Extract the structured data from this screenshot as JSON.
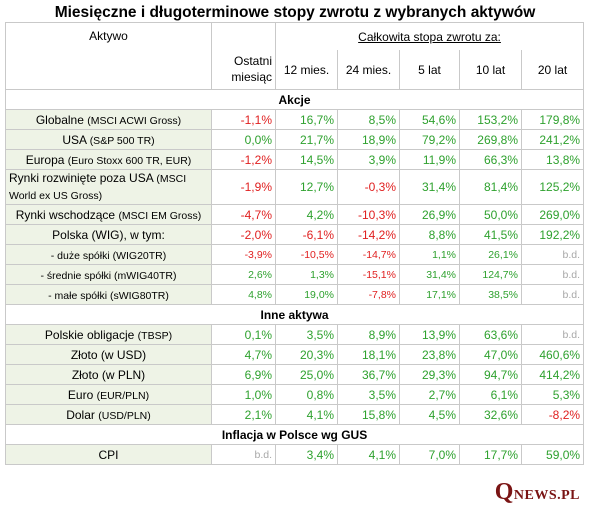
{
  "title": "Miesięczne i długoterminowe stopy zwrotu z wybranych aktywów",
  "header": {
    "asset": "Aktywo",
    "last_month_1": "Ostatni",
    "last_month_2": "miesiąc",
    "total_return": "Całkowita stopa zwrotu za:",
    "periods": [
      "12 mies.",
      "24 mies.",
      "5 lat",
      "10 lat",
      "20 lat"
    ]
  },
  "sections": [
    {
      "title": "Akcje",
      "rows": [
        {
          "name": "Globalne",
          "sub": "(MSCI ACWI Gross)",
          "values": [
            "-1,1%",
            "16,7%",
            "8,5%",
            "54,6%",
            "153,2%",
            "179,8%"
          ]
        },
        {
          "name": "USA",
          "sub": "(S&P 500 TR)",
          "values": [
            "0,0%",
            "21,7%",
            "18,9%",
            "79,2%",
            "269,8%",
            "241,2%"
          ]
        },
        {
          "name": "Europa",
          "sub": "(Euro Stoxx 600 TR, EUR)",
          "values": [
            "-1,2%",
            "14,5%",
            "3,9%",
            "11,9%",
            "66,3%",
            "13,8%"
          ]
        },
        {
          "name": "Rynki rozwinięte poza USA",
          "sub": "(MSCI",
          "sub2": "World ex US Gross)",
          "values": [
            "-1,9%",
            "12,7%",
            "-0,3%",
            "31,4%",
            "81,4%",
            "125,2%"
          ]
        },
        {
          "name": "Rynki wschodzące",
          "sub": "(MSCI EM Gross)",
          "values": [
            "-4,7%",
            "4,2%",
            "-10,3%",
            "26,9%",
            "50,0%",
            "269,0%"
          ]
        },
        {
          "name": "Polska (WIG), w tym:",
          "sub": "",
          "values": [
            "-2,0%",
            "-6,1%",
            "-14,2%",
            "8,8%",
            "41,5%",
            "192,2%"
          ]
        },
        {
          "name": "- duże spółki (WIG20TR)",
          "small": true,
          "values": [
            "-3,9%",
            "-10,5%",
            "-14,7%",
            "1,1%",
            "26,1%",
            "b.d."
          ]
        },
        {
          "name": "- średnie spółki (mWIG40TR)",
          "small": true,
          "values": [
            "2,6%",
            "1,3%",
            "-15,1%",
            "31,4%",
            "124,7%",
            "b.d."
          ]
        },
        {
          "name": "- małe spółki (sWIG80TR)",
          "small": true,
          "values": [
            "4,8%",
            "19,0%",
            "-7,8%",
            "17,1%",
            "38,5%",
            "b.d."
          ]
        }
      ]
    },
    {
      "title": "Inne aktywa",
      "rows": [
        {
          "name": "Polskie obligacje",
          "sub": "(TBSP)",
          "values": [
            "0,1%",
            "3,5%",
            "8,9%",
            "13,9%",
            "63,6%",
            "b.d."
          ]
        },
        {
          "name": "Złoto (w USD)",
          "sub": "",
          "values": [
            "4,7%",
            "20,3%",
            "18,1%",
            "23,8%",
            "47,0%",
            "460,6%"
          ]
        },
        {
          "name": "Złoto (w PLN)",
          "sub": "",
          "values": [
            "6,9%",
            "25,0%",
            "36,7%",
            "29,3%",
            "94,7%",
            "414,2%"
          ]
        },
        {
          "name": "Euro",
          "sub": "(EUR/PLN)",
          "values": [
            "1,0%",
            "0,8%",
            "3,5%",
            "2,7%",
            "6,1%",
            "5,3%"
          ]
        },
        {
          "name": "Dolar",
          "sub": "(USD/PLN)",
          "values": [
            "2,1%",
            "4,1%",
            "15,8%",
            "4,5%",
            "32,6%",
            "-8,2%"
          ]
        }
      ]
    },
    {
      "title": "Inflacja w Polsce wg GUS",
      "rows": [
        {
          "name": "CPI",
          "sub": "",
          "values": [
            "b.d.",
            "3,4%",
            "4,1%",
            "7,0%",
            "17,7%",
            "59,0%"
          ]
        }
      ]
    }
  ],
  "logo": {
    "q": "Q",
    "news": "NEWS",
    "dot": ".PL"
  },
  "colors": {
    "positive": "#2ea12e",
    "negative": "#e02020",
    "na": "#a8a8a8",
    "header_bg": "#e8f0dc",
    "logo": "#7a1414"
  }
}
